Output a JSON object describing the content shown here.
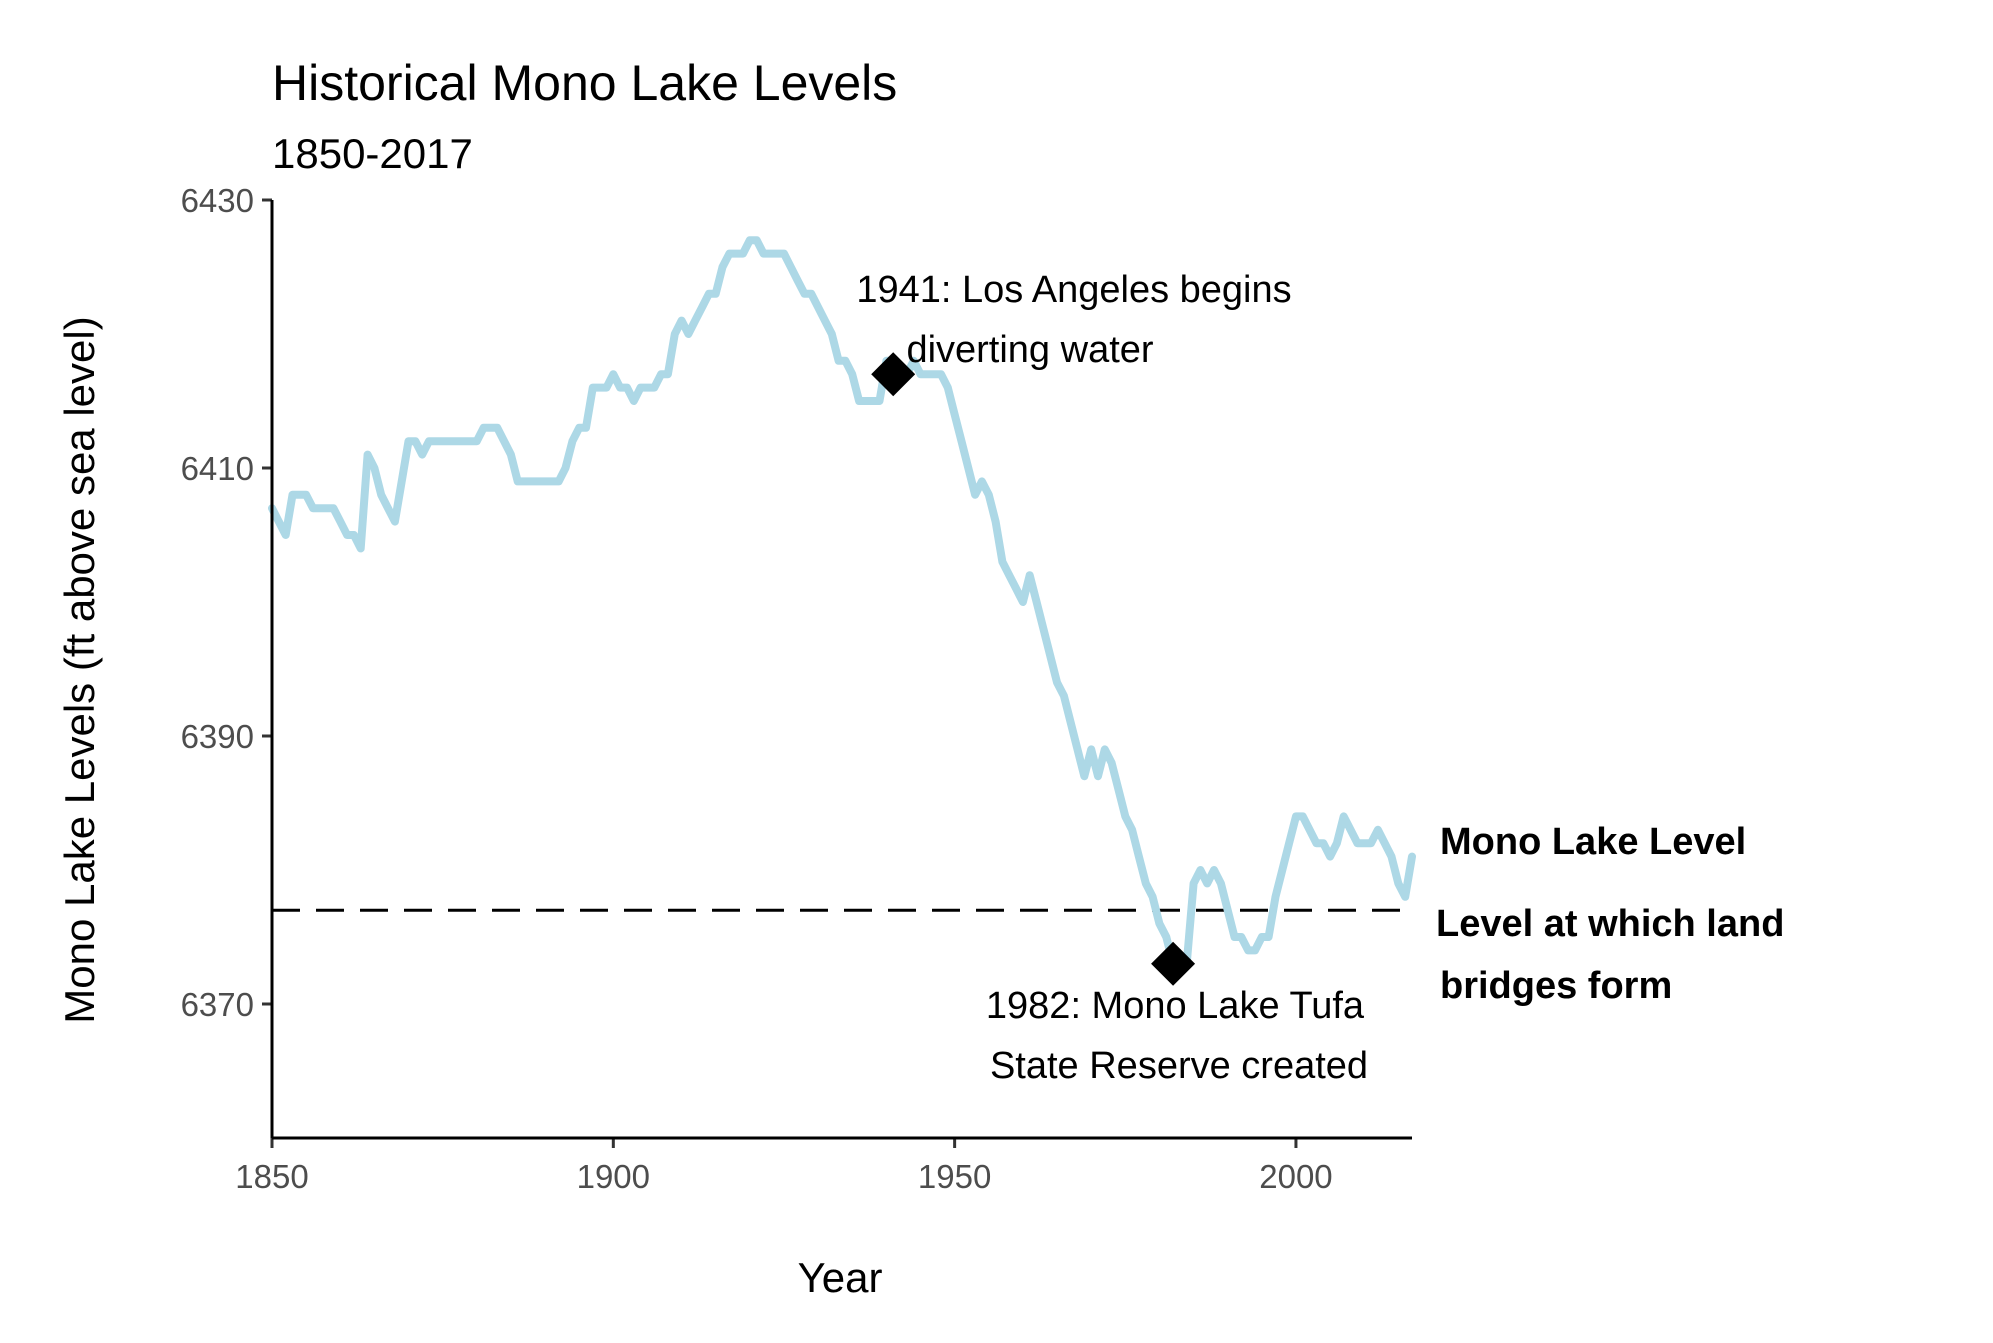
{
  "chart_data": {
    "type": "line",
    "title": "Historical Mono Lake Levels",
    "subtitle": "1850-2017",
    "xlabel": "Year",
    "ylabel": "Mono Lake Levels (ft above sea level)",
    "xlim": [
      1850,
      2017
    ],
    "ylim": [
      6360,
      6430
    ],
    "x_ticks": [
      1850,
      1900,
      1950,
      2000
    ],
    "y_ticks": [
      6370,
      6390,
      6410,
      6430
    ],
    "grid": false,
    "colors": {
      "series": "#add8e6",
      "threshold": "#000000",
      "marker": "#000000"
    },
    "series": [
      {
        "name": "Mono Lake Level",
        "x": [
          1850,
          1851,
          1852,
          1853,
          1854,
          1855,
          1856,
          1857,
          1858,
          1859,
          1860,
          1861,
          1862,
          1863,
          1864,
          1865,
          1866,
          1867,
          1868,
          1869,
          1870,
          1871,
          1872,
          1873,
          1874,
          1875,
          1876,
          1877,
          1878,
          1879,
          1880,
          1881,
          1882,
          1883,
          1884,
          1885,
          1886,
          1887,
          1888,
          1889,
          1890,
          1891,
          1892,
          1893,
          1894,
          1895,
          1896,
          1897,
          1898,
          1899,
          1900,
          1901,
          1902,
          1903,
          1904,
          1905,
          1906,
          1907,
          1908,
          1909,
          1910,
          1911,
          1912,
          1913,
          1914,
          1915,
          1916,
          1917,
          1918,
          1919,
          1920,
          1921,
          1922,
          1923,
          1924,
          1925,
          1926,
          1927,
          1928,
          1929,
          1930,
          1931,
          1932,
          1933,
          1934,
          1935,
          1936,
          1937,
          1938,
          1939,
          1940,
          1941,
          1942,
          1943,
          1944,
          1945,
          1946,
          1947,
          1948,
          1949,
          1950,
          1951,
          1952,
          1953,
          1954,
          1955,
          1956,
          1957,
          1958,
          1959,
          1960,
          1961,
          1962,
          1963,
          1964,
          1965,
          1966,
          1967,
          1968,
          1969,
          1970,
          1971,
          1972,
          1973,
          1974,
          1975,
          1976,
          1977,
          1978,
          1979,
          1980,
          1981,
          1982,
          1983,
          1984,
          1985,
          1986,
          1987,
          1988,
          1989,
          1990,
          1991,
          1992,
          1993,
          1994,
          1995,
          1996,
          1997,
          1998,
          1999,
          2000,
          2001,
          2002,
          2003,
          2004,
          2005,
          2006,
          2007,
          2008,
          2009,
          2010,
          2011,
          2012,
          2013,
          2014,
          2015,
          2016,
          2017
        ],
        "values": [
          6407,
          6406,
          6405,
          6408,
          6408,
          6408,
          6407,
          6407,
          6407,
          6407,
          6406,
          6405,
          6405,
          6404,
          6411,
          6410,
          6408,
          6407,
          6406,
          6409,
          6412,
          6412,
          6411,
          6412,
          6412,
          6412,
          6412,
          6412,
          6412,
          6412,
          6412,
          6413,
          6413,
          6413,
          6412,
          6411,
          6409,
          6409,
          6409,
          6409,
          6409,
          6409,
          6409,
          6410,
          6412,
          6413,
          6413,
          6416,
          6416,
          6416,
          6417,
          6416,
          6416,
          6415,
          6416,
          6416,
          6416,
          6417,
          6417,
          6420,
          6421,
          6420,
          6421,
          6422,
          6423,
          6423,
          6425,
          6426,
          6426,
          6426,
          6427,
          6427,
          6426,
          6426,
          6426,
          6426,
          6425,
          6424,
          6423,
          6423,
          6422,
          6421,
          6420,
          6418,
          6418,
          6417,
          6415,
          6415,
          6415,
          6415,
          6418,
          6418,
          6417,
          6417,
          6418,
          6417,
          6417,
          6417,
          6417,
          6416,
          6414,
          6412,
          6410,
          6408,
          6409,
          6408,
          6406,
          6403,
          6402,
          6401,
          6400,
          6402,
          6400,
          6398,
          6396,
          6394,
          6393,
          6391,
          6389,
          6387,
          6389,
          6387,
          6389,
          6388,
          6386,
          6384,
          6383,
          6381,
          6379,
          6378,
          6376,
          6375,
          6373,
          6373,
          6373,
          6379,
          6380,
          6379,
          6380,
          6379,
          6377,
          6375,
          6375,
          6374,
          6374,
          6375,
          6375,
          6378,
          6380,
          6382,
          6384,
          6384,
          6383,
          6382,
          6382,
          6381,
          6382,
          6384,
          6383,
          6382,
          6382,
          6382,
          6383,
          6382,
          6381,
          6379,
          6378,
          6381
        ]
      }
    ],
    "threshold": {
      "name": "Level at which land bridges form",
      "y": 6377
    },
    "annotations": [
      {
        "x": 1941,
        "y": 6417,
        "text_line1": "1941: Los Angeles begins",
        "text_line2": "diverting water"
      },
      {
        "x": 1982,
        "y": 6373,
        "text_line1": "1982: Mono Lake Tufa",
        "text_line2": "State Reserve created"
      }
    ],
    "labels": {
      "series_label": "Mono Lake Level",
      "threshold_label_line1": "Level at which land",
      "threshold_label_line2": "bridges form"
    }
  }
}
